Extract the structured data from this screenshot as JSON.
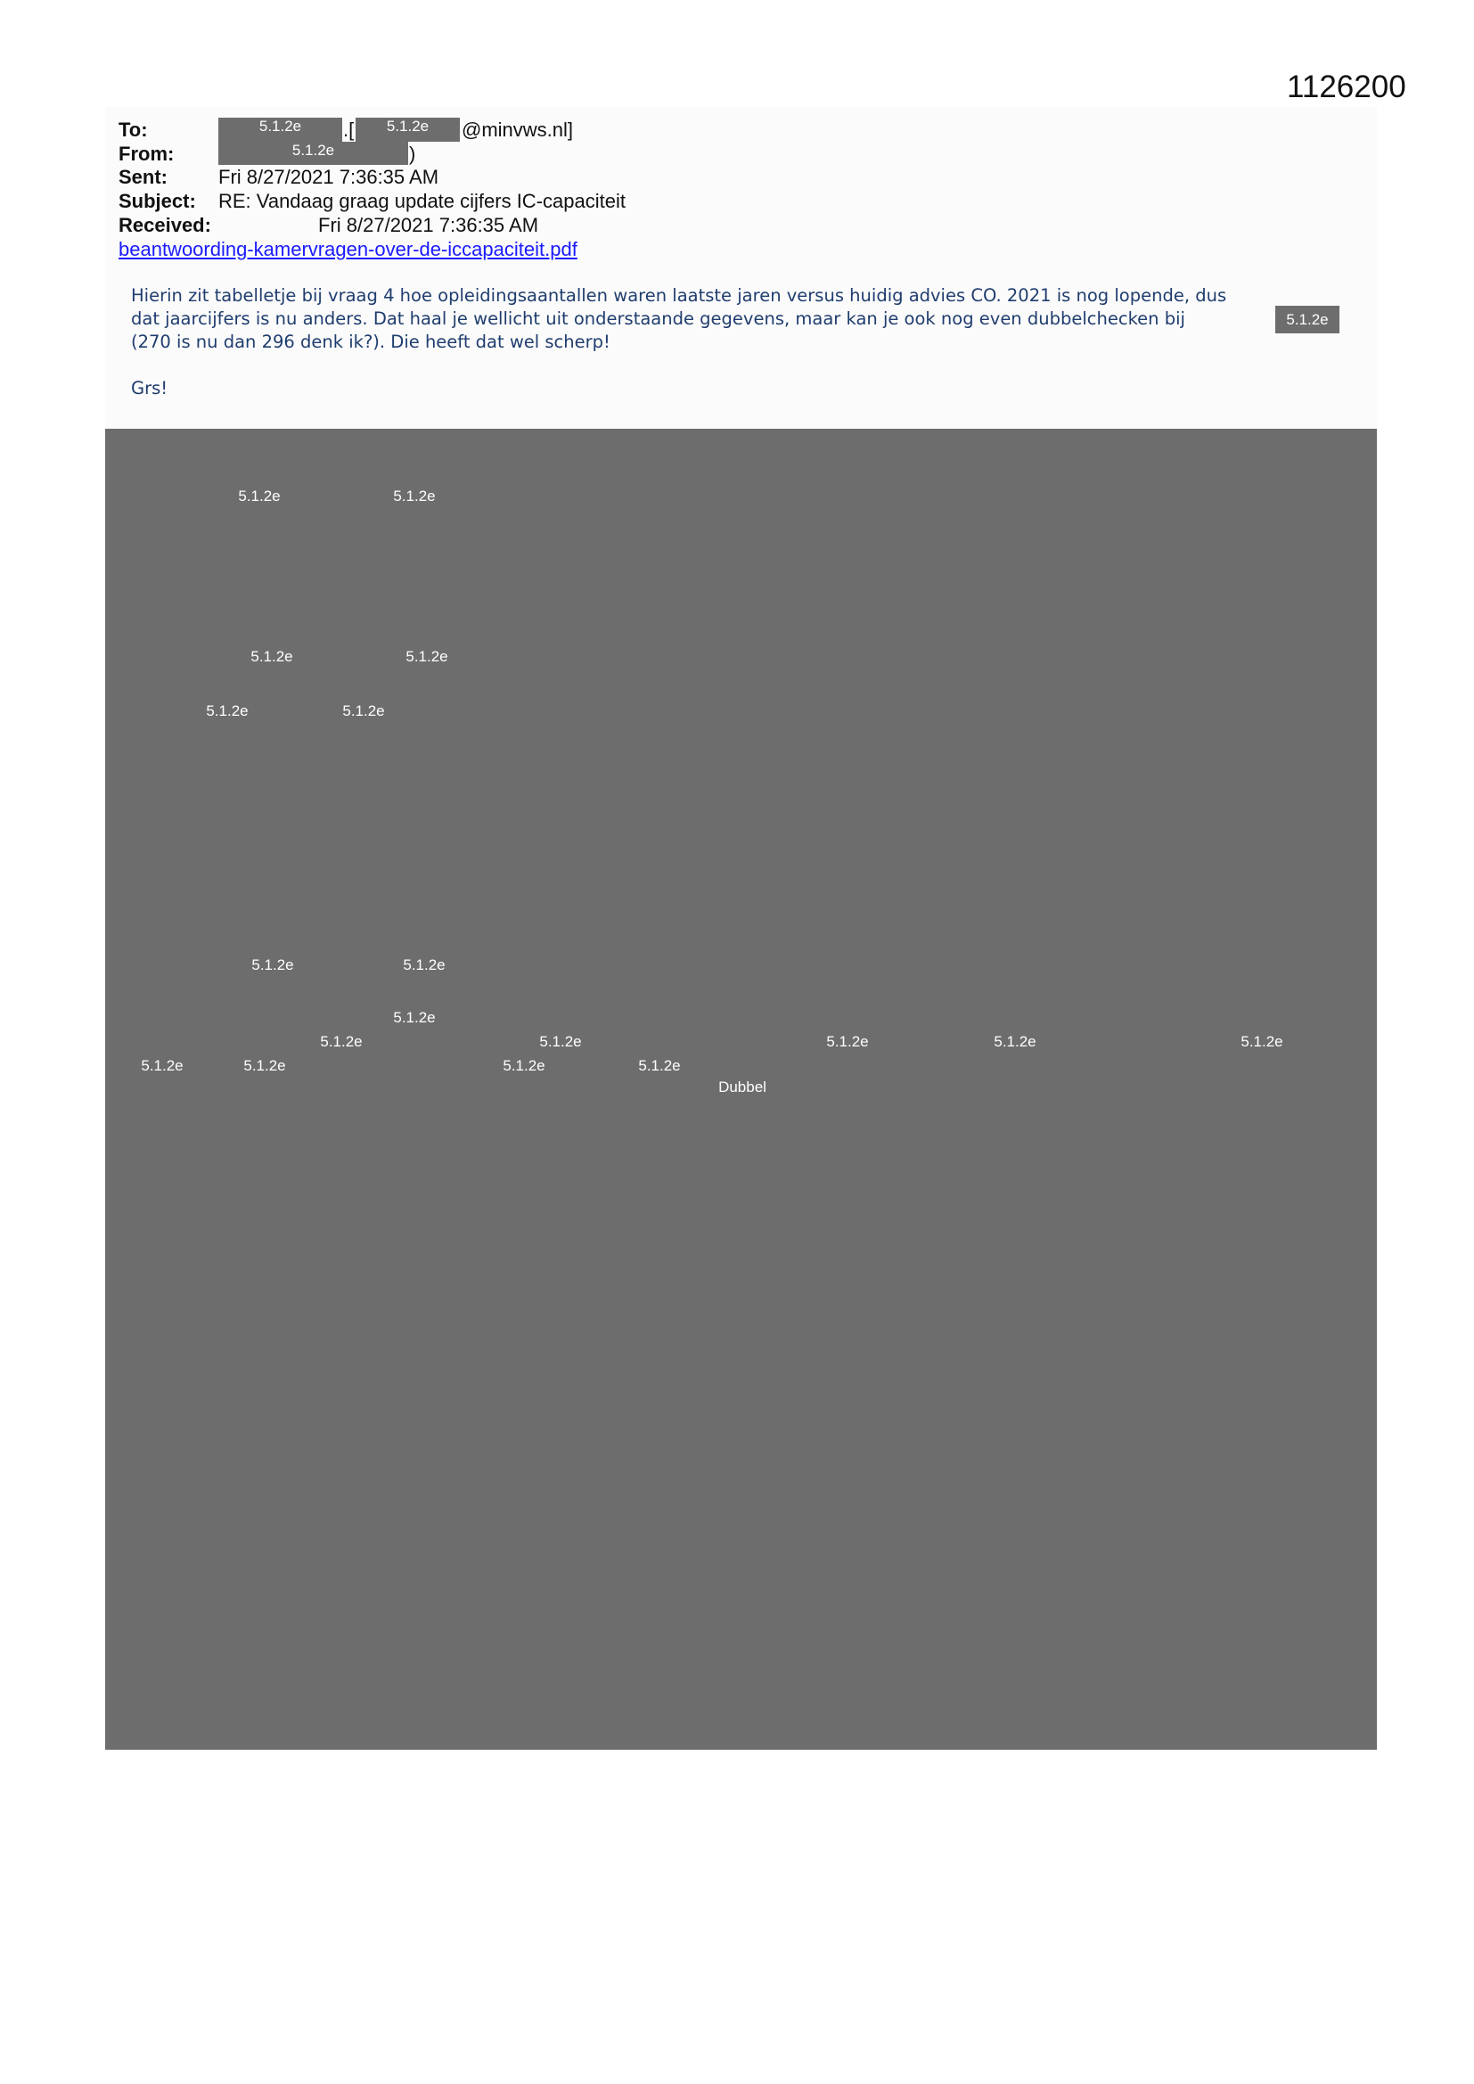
{
  "document_number": "1126200",
  "redaction_code": "5.1.2e",
  "header": {
    "to_label": "To:",
    "to_suffix_dot": ".[",
    "to_domain": "@minvws.nl]",
    "from_label": "From:",
    "from_suffix": ")",
    "sent_label": "Sent:",
    "sent_value": "Fri 8/27/2021 7:36:35 AM",
    "subject_label": "Subject:",
    "subject_value": "RE: Vandaag graag update cijfers IC-capaciteit",
    "received_label": "Received:",
    "received_value": "Fri 8/27/2021 7:36:35 AM",
    "attachment": "beantwoording-kamervragen-over-de-iccapaciteit.pdf"
  },
  "body": {
    "line1": "Hierin zit tabelletje bij vraag 4 hoe opleidingsaantallen waren laatste jaren versus huidig advies CO. 2021 is nog lopende, dus",
    "line2": "dat jaarcijfers is nu anders. Dat haal je wellicht uit onderstaande gegevens, maar kan je ook nog even dubbelchecken bij",
    "line3": "(270 is nu dan 296 denk ik?). Die heeft dat wel scherp!",
    "closing": "Grs!"
  },
  "redacted_block": {
    "visible_word": "Dubbel"
  }
}
